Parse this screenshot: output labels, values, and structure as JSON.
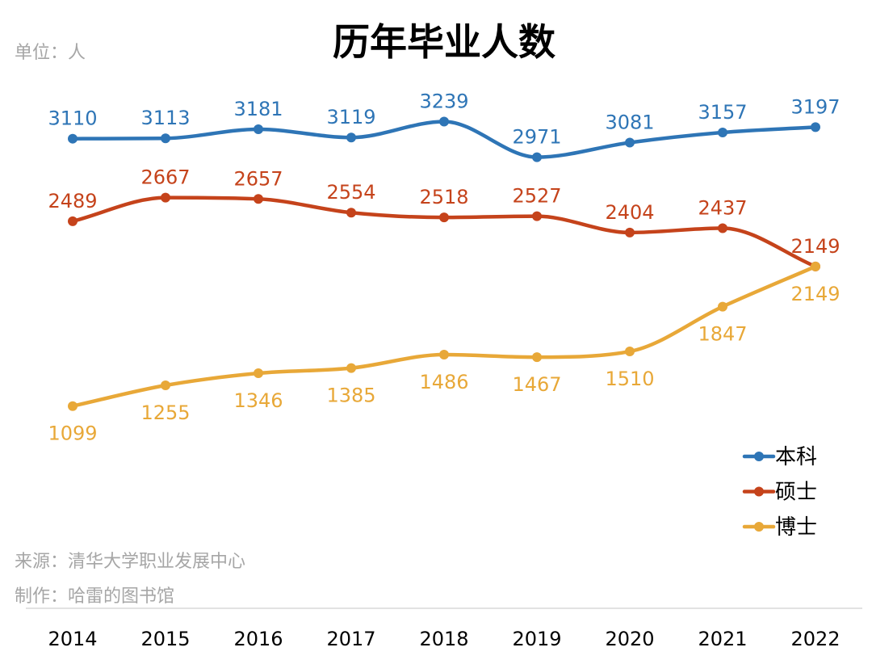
{
  "unit_label": "单位：人",
  "source_note": "来源：清华大学职业发展中心",
  "author_note": "制作：哈雷的图书馆",
  "chart_data": {
    "type": "line",
    "title": "历年毕业人数",
    "xlabel": "",
    "ylabel": "",
    "categories": [
      "2014",
      "2015",
      "2016",
      "2017",
      "2018",
      "2019",
      "2020",
      "2021",
      "2022"
    ],
    "series": [
      {
        "name": "本科",
        "color": "#2e75b6",
        "values": [
          3110,
          3113,
          3181,
          3119,
          3239,
          2971,
          3081,
          3157,
          3197
        ],
        "label_position": "above"
      },
      {
        "name": "硕士",
        "color": "#c5431b",
        "values": [
          2489,
          2667,
          2657,
          2554,
          2518,
          2527,
          2404,
          2437,
          2149
        ],
        "label_position": "above"
      },
      {
        "name": "博士",
        "color": "#e8a838",
        "values": [
          1099,
          1255,
          1346,
          1385,
          1486,
          1467,
          1510,
          1847,
          2149
        ],
        "label_position": "below"
      }
    ],
    "ylim": [
      0,
      3500
    ],
    "grid": false,
    "legend_position": "bottom-right",
    "smooth": true
  }
}
